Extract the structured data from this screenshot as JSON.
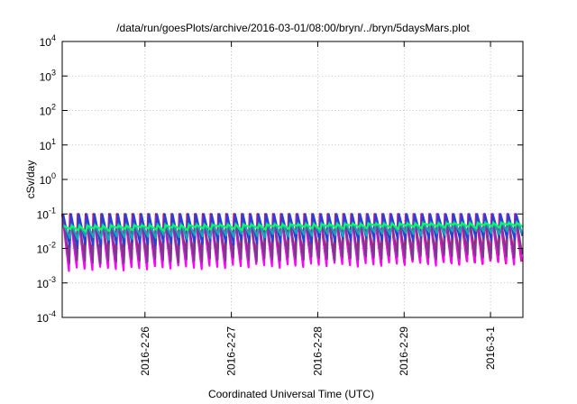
{
  "chart_data": {
    "type": "line",
    "title": "/data/run/goesPlots/archive/2016-03-01/08:00/bryn/../bryn/5daysMars.plot",
    "xlabel": "Coordinated Universal Time (UTC)",
    "ylabel": "cSv/day",
    "x_range_days_from_start": [
      0,
      5.333
    ],
    "x_ticks": [
      {
        "label": "2016-2-26",
        "at_day": 0.958
      },
      {
        "label": "2016-2-27",
        "at_day": 1.958
      },
      {
        "label": "2016-2-28",
        "at_day": 2.958
      },
      {
        "label": "2016-2-29",
        "at_day": 3.958
      },
      {
        "label": "2016-3-1",
        "at_day": 4.958
      }
    ],
    "y_scale": "log",
    "ylim": [
      0.0001,
      10000
    ],
    "y_ticks": [
      {
        "base": "10",
        "exp": "-4",
        "value": 0.0001
      },
      {
        "base": "10",
        "exp": "-3",
        "value": 0.001
      },
      {
        "base": "10",
        "exp": "-2",
        "value": 0.01
      },
      {
        "base": "10",
        "exp": "-1",
        "value": 0.1
      },
      {
        "base": "10",
        "exp": "0",
        "value": 1
      },
      {
        "base": "10",
        "exp": "1",
        "value": 10
      },
      {
        "base": "10",
        "exp": "2",
        "value": 100
      },
      {
        "base": "10",
        "exp": "3",
        "value": 1000
      },
      {
        "base": "10",
        "exp": "4",
        "value": 10000
      }
    ],
    "grid": true,
    "pattern": "sawtooth, about 11 cycles per day",
    "series": [
      {
        "color": "#d40000",
        "lows": [
          0.005,
          0.004
        ],
        "highs": [
          0.1,
          0.1
        ]
      },
      {
        "color": "#ff00ff",
        "lows": [
          0.0025,
          0.004
        ],
        "highs": [
          0.085,
          0.1
        ]
      },
      {
        "color": "#7a3a8c",
        "lows": [
          0.004,
          0.006
        ],
        "highs": [
          0.09,
          0.095
        ]
      },
      {
        "color": "#2a3fd6",
        "lows": [
          0.012,
          0.02
        ],
        "highs": [
          0.1,
          0.1
        ]
      },
      {
        "color": "#17a6b3",
        "lows": [
          0.02,
          0.03
        ],
        "highs": [
          0.05,
          0.06
        ]
      },
      {
        "color": "#00ff66",
        "lows": [
          0.035,
          0.045
        ],
        "highs": [
          0.045,
          0.055
        ]
      }
    ]
  }
}
